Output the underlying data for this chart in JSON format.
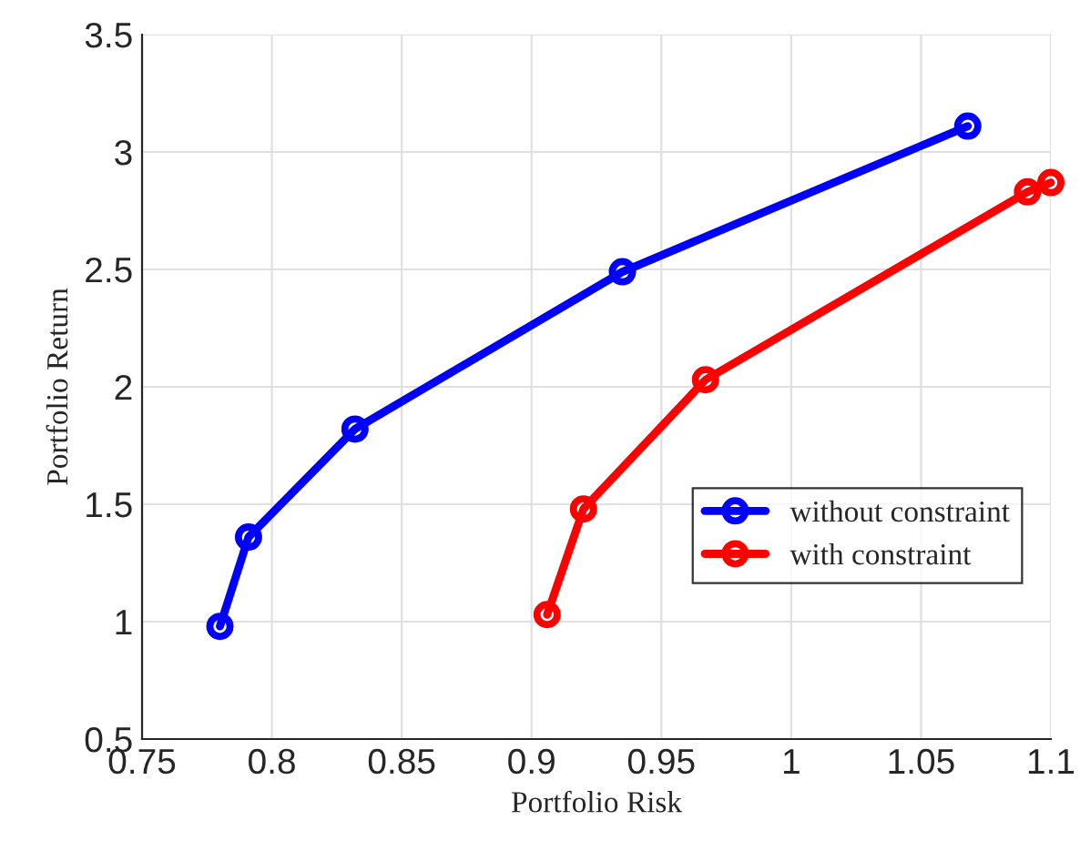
{
  "chart_data": {
    "type": "line",
    "xlabel": "Portfolio Risk",
    "ylabel": "Portfolio Return",
    "xlim": [
      0.75,
      1.1
    ],
    "xticks": [
      0.75,
      0.8,
      0.85,
      0.9,
      0.95,
      1,
      1.05,
      1.1
    ],
    "ylim": [
      0.5,
      3.5
    ],
    "yticks": [
      0.5,
      1,
      1.5,
      2,
      2.5,
      3,
      3.5
    ],
    "grid": true,
    "legend": "bottom right",
    "marker": "circle",
    "line_style": "solid",
    "series": [
      {
        "name": "without constraint",
        "color": "#0000ff",
        "x": [
          0.78,
          0.791,
          0.832,
          0.935,
          1.068
        ],
        "values": [
          0.98,
          1.36,
          1.82,
          2.49,
          3.11
        ]
      },
      {
        "name": "with constraint",
        "color": "#ff0000",
        "x": [
          0.906,
          0.92,
          0.967,
          1.091,
          1.1
        ],
        "values": [
          1.03,
          1.48,
          2.03,
          2.83,
          2.87
        ]
      }
    ]
  }
}
